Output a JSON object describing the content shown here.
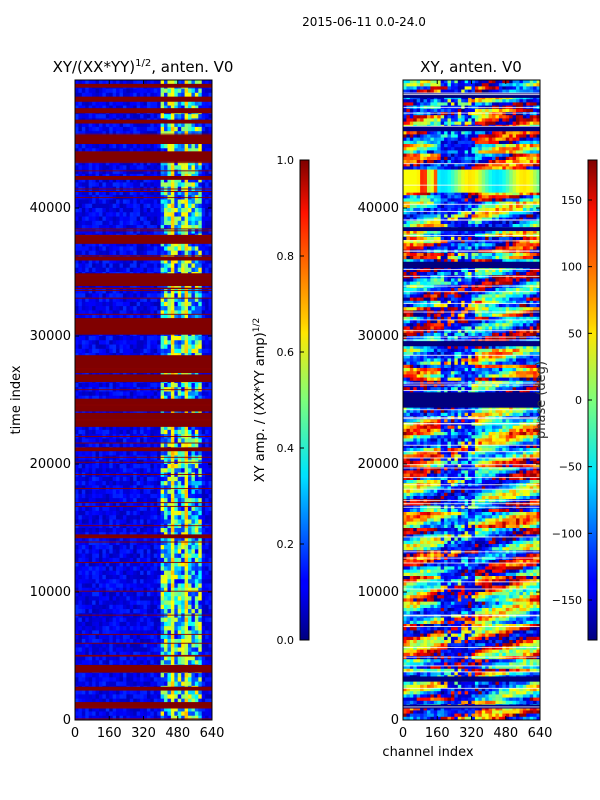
{
  "figure": {
    "suptitle": "2015-06-11 0.0-24.0"
  },
  "chart_data": [
    {
      "type": "heatmap",
      "title": "XY/(XX*YY)^{1/2}, anten. V0",
      "title_main": "XY/(XX*YY)",
      "title_exp": "1/2",
      "title_tail": ", anten. V0",
      "xlabel": "",
      "ylabel": "time index",
      "xlim": [
        0,
        640
      ],
      "ylim": [
        0,
        50000
      ],
      "xticks": [
        0,
        160,
        320,
        480,
        640
      ],
      "yticks": [
        0,
        10000,
        20000,
        30000,
        40000
      ],
      "colorbar": {
        "label": "XY amp. / (XX*YY amp)^{1/2}",
        "label_main": "XY amp. / (XX*YY amp)",
        "label_exp": "1/2",
        "vmin": 0.0,
        "vmax": 1.0,
        "ticks": [
          "0.0",
          "0.2",
          "0.4",
          "0.6",
          "0.8",
          "1.0"
        ],
        "colormap": "jet"
      },
      "saturated_row_bands": [
        [
          900,
          1400
        ],
        [
          2300,
          2600
        ],
        [
          3700,
          4300
        ],
        [
          14200,
          14500
        ],
        [
          21000,
          21300
        ],
        [
          22900,
          24000
        ],
        [
          24100,
          25100
        ],
        [
          26400,
          27000
        ],
        [
          27100,
          28500
        ],
        [
          30100,
          31400
        ],
        [
          33900,
          34900
        ],
        [
          35900,
          36200
        ],
        [
          37200,
          37900
        ],
        [
          42200,
          42500
        ],
        [
          43600,
          44400
        ],
        [
          45000,
          45700
        ],
        [
          46600,
          46900
        ],
        [
          47400,
          47800
        ],
        [
          48300,
          48700
        ],
        [
          49400,
          49700
        ]
      ]
    },
    {
      "type": "heatmap",
      "title": "XY, anten. V0",
      "xlabel": "channel index",
      "ylabel": "",
      "xlim": [
        0,
        640
      ],
      "ylim": [
        0,
        50000
      ],
      "xticks": [
        0,
        160,
        320,
        480,
        640
      ],
      "yticks": [
        0,
        10000,
        20000,
        30000,
        40000
      ],
      "colorbar": {
        "label": "phase (deg)",
        "vmin": -180,
        "vmax": 180,
        "ticks": [
          "−150",
          "−100",
          "−50",
          "0",
          "50",
          "100",
          "150"
        ],
        "tick_values": [
          -150,
          -100,
          -50,
          0,
          50,
          100,
          150
        ],
        "colormap": "jet"
      },
      "low_value_row_bands": [
        [
          24400,
          25600
        ],
        [
          29200,
          29600
        ],
        [
          35300,
          35800
        ],
        [
          38200,
          38500
        ],
        [
          46000,
          46400
        ],
        [
          48600,
          49000
        ],
        [
          3000,
          3400
        ],
        [
          900,
          1200
        ]
      ],
      "high_value_row_bands": [
        [
          41200,
          43000
        ]
      ]
    }
  ]
}
